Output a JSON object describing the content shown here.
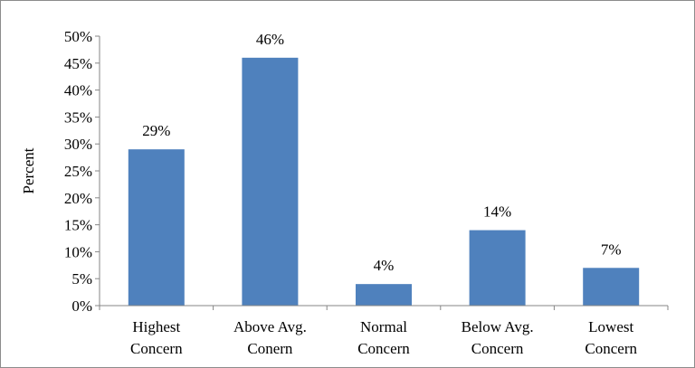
{
  "chart_data": {
    "type": "bar",
    "categories": [
      [
        "Highest",
        "Concern"
      ],
      [
        "Above Avg.",
        "Conern"
      ],
      [
        "Normal",
        "Concern"
      ],
      [
        "Below Avg.",
        "Concern"
      ],
      [
        "Lowest",
        "Concern"
      ]
    ],
    "values": [
      29,
      46,
      4,
      14,
      7
    ],
    "data_labels": [
      "29%",
      "46%",
      "4%",
      "14%",
      "7%"
    ],
    "ylabel": "Percent",
    "ylim": [
      0,
      50
    ],
    "yticks": [
      "0%",
      "5%",
      "10%",
      "15%",
      "20%",
      "25%",
      "30%",
      "35%",
      "40%",
      "45%",
      "50%"
    ],
    "bar_color": "#4f81bd",
    "grid": false,
    "legend": "none"
  }
}
